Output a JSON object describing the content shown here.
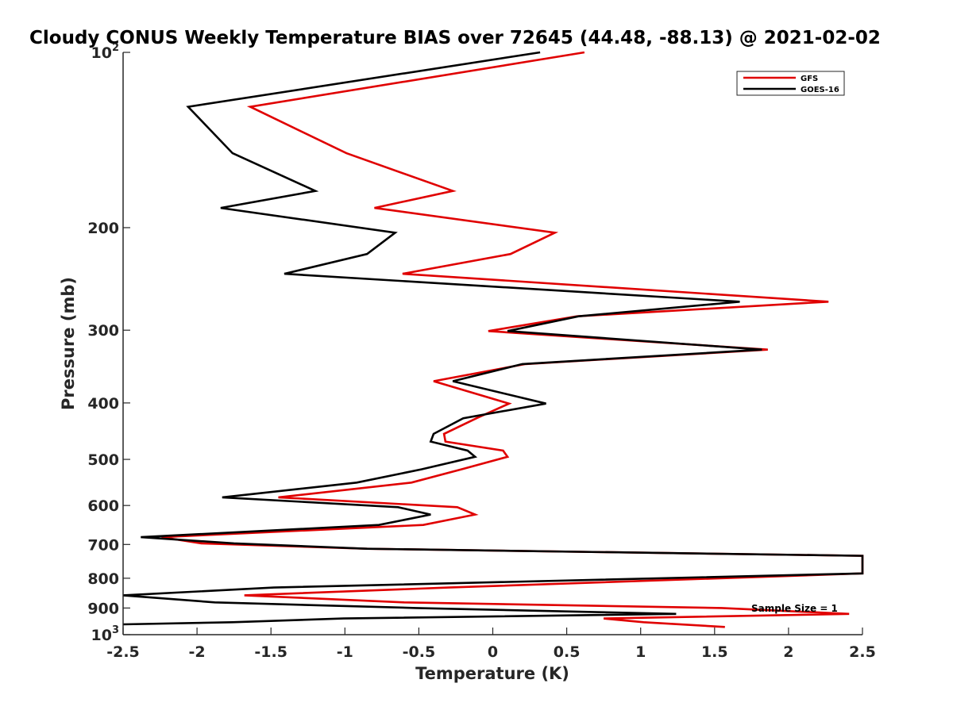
{
  "chart_data": {
    "type": "line",
    "title": "Cloudy CONUS Weekly Temperature BIAS over 72645 (44.48, -88.13) @ 2021-02-02",
    "xlabel": "Temperature (K)",
    "ylabel": "Pressure (mb)",
    "xlim": [
      -2.5,
      2.5
    ],
    "ylim": [
      100,
      1000
    ],
    "y_scale": "log",
    "y_reversed": true,
    "x_ticks": [
      "-2.5",
      "-2",
      "-1.5",
      "-1",
      "-0.5",
      "0",
      "0.5",
      "1",
      "1.5",
      "2",
      "2.5"
    ],
    "y_ticks": [
      {
        "value": 100,
        "base": "10",
        "exp": "2"
      },
      {
        "value": 200,
        "label": "200"
      },
      {
        "value": 300,
        "label": "300"
      },
      {
        "value": 400,
        "label": "400"
      },
      {
        "value": 500,
        "label": "500"
      },
      {
        "value": 600,
        "label": "600"
      },
      {
        "value": 700,
        "label": "700"
      },
      {
        "value": 800,
        "label": "800"
      },
      {
        "value": 900,
        "label": "900"
      },
      {
        "value": 1000,
        "base": "10",
        "exp": "3"
      }
    ],
    "grid": false,
    "legend_position": "top-right",
    "annotation": "Sample Size = 1",
    "series": [
      {
        "name": "GFS",
        "color": "#e00000",
        "points": [
          [
            0.62,
            100
          ],
          [
            -1.64,
            124
          ],
          [
            -0.99,
            149
          ],
          [
            -0.27,
            173
          ],
          [
            -0.8,
            185
          ],
          [
            0.42,
            204
          ],
          [
            0.12,
            222
          ],
          [
            -0.61,
            240
          ],
          [
            2.27,
            268
          ],
          [
            0.57,
            284
          ],
          [
            -0.03,
            301
          ],
          [
            1.86,
            324
          ],
          [
            0.22,
            343
          ],
          [
            -0.4,
            367
          ],
          [
            0.11,
            401
          ],
          [
            -0.11,
            425
          ],
          [
            -0.33,
            452
          ],
          [
            -0.32,
            466
          ],
          [
            0.07,
            483
          ],
          [
            0.1,
            495
          ],
          [
            -0.21,
            520
          ],
          [
            -0.55,
            548
          ],
          [
            -1.45,
            581
          ],
          [
            -0.24,
            604
          ],
          [
            -0.12,
            622
          ],
          [
            -0.47,
            648
          ],
          [
            -2.24,
            680
          ],
          [
            -1.97,
            697
          ],
          [
            -0.85,
            712
          ],
          [
            2.5,
            732
          ],
          [
            2.5,
            785
          ],
          [
            -0.3,
            830
          ],
          [
            -1.68,
            856
          ],
          [
            -0.6,
            880
          ],
          [
            1.55,
            900
          ],
          [
            2.41,
            921
          ],
          [
            0.75,
            938
          ],
          [
            1.02,
            952
          ],
          [
            1.57,
            970
          ]
        ]
      },
      {
        "name": "GOES-16",
        "color": "#000000",
        "points": [
          [
            0.32,
            100
          ],
          [
            -2.06,
            124
          ],
          [
            -1.76,
            149
          ],
          [
            -1.2,
            173
          ],
          [
            -1.84,
            185
          ],
          [
            -0.66,
            204
          ],
          [
            -0.85,
            222
          ],
          [
            -1.41,
            240
          ],
          [
            1.67,
            268
          ],
          [
            0.58,
            284
          ],
          [
            0.1,
            301
          ],
          [
            1.82,
            324
          ],
          [
            0.2,
            343
          ],
          [
            -0.27,
            367
          ],
          [
            0.36,
            401
          ],
          [
            -0.2,
            425
          ],
          [
            -0.4,
            452
          ],
          [
            -0.42,
            466
          ],
          [
            -0.17,
            483
          ],
          [
            -0.12,
            495
          ],
          [
            -0.48,
            520
          ],
          [
            -0.92,
            548
          ],
          [
            -1.83,
            581
          ],
          [
            -0.64,
            604
          ],
          [
            -0.42,
            622
          ],
          [
            -0.77,
            648
          ],
          [
            -2.38,
            680
          ],
          [
            -1.75,
            697
          ],
          [
            -0.85,
            712
          ],
          [
            2.5,
            732
          ],
          [
            2.5,
            785
          ],
          [
            -1.48,
            830
          ],
          [
            -2.5,
            856
          ],
          [
            -1.88,
            880
          ],
          [
            -0.52,
            900
          ],
          [
            1.24,
            921
          ],
          [
            -1.01,
            938
          ],
          [
            -1.76,
            952
          ],
          [
            -2.5,
            960
          ]
        ]
      }
    ]
  }
}
